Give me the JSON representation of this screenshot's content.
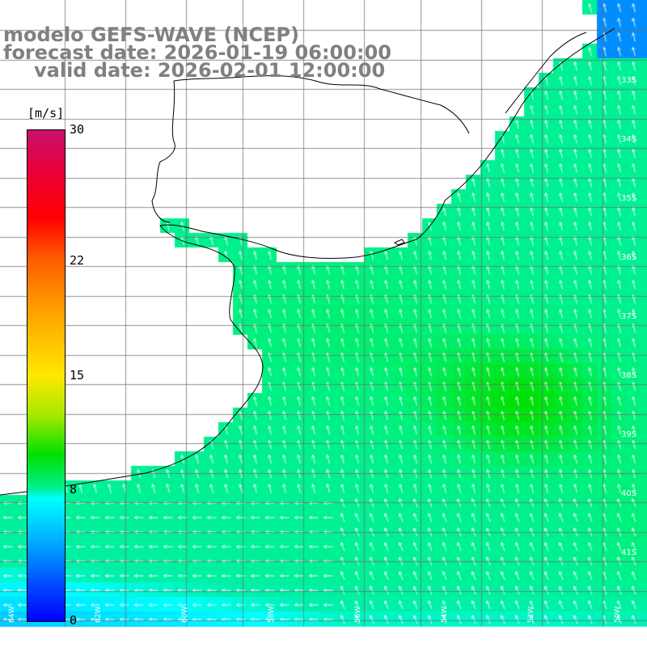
{
  "title": {
    "line1": "modelo GEFS-WAVE (NCEP)",
    "line2": "forecast date: 2026-01-19 06:00:00",
    "line3": "valid date: 2026-02-01 12:00:00"
  },
  "colorbar": {
    "unit": "[m/s]",
    "min": 0,
    "max": 30,
    "ticks": [
      {
        "value": 30,
        "label": "30"
      },
      {
        "value": 22,
        "label": "22"
      },
      {
        "value": 15,
        "label": "15"
      },
      {
        "value": 8,
        "label": "8"
      },
      {
        "value": 0,
        "label": "0"
      }
    ],
    "colors": [
      "#c8106e",
      "#e8003c",
      "#ff0000",
      "#ff5a00",
      "#ff9c00",
      "#ffe800",
      "#a8e800",
      "#00e000",
      "#00f090",
      "#00ffff",
      "#00b4ff",
      "#0050ff",
      "#0000ff"
    ]
  },
  "map": {
    "field": "wind speed",
    "land_color": "#ffffff",
    "grid_color": "#888888",
    "arrow_color": "#ffffff",
    "latitude_labels": [
      {
        "lat": 33,
        "label": "33S"
      },
      {
        "lat": 34,
        "label": "34S"
      },
      {
        "lat": 35,
        "label": "35S"
      },
      {
        "lat": 36,
        "label": "36S"
      },
      {
        "lat": 37,
        "label": "37S"
      },
      {
        "lat": 38,
        "label": "38S"
      },
      {
        "lat": 39,
        "label": "39S"
      },
      {
        "lat": 40,
        "label": "40S"
      },
      {
        "lat": 41,
        "label": "41S"
      }
    ],
    "longitude_labels": [
      {
        "lon": 64,
        "label": "64W"
      },
      {
        "lon": 62,
        "label": "62W"
      },
      {
        "lon": 60,
        "label": "60W"
      },
      {
        "lon": 58,
        "label": "58W"
      },
      {
        "lon": 56,
        "label": "56W"
      },
      {
        "lon": 54,
        "label": "54W"
      },
      {
        "lon": 52,
        "label": "52W"
      },
      {
        "lon": 50,
        "label": "50W"
      }
    ]
  }
}
